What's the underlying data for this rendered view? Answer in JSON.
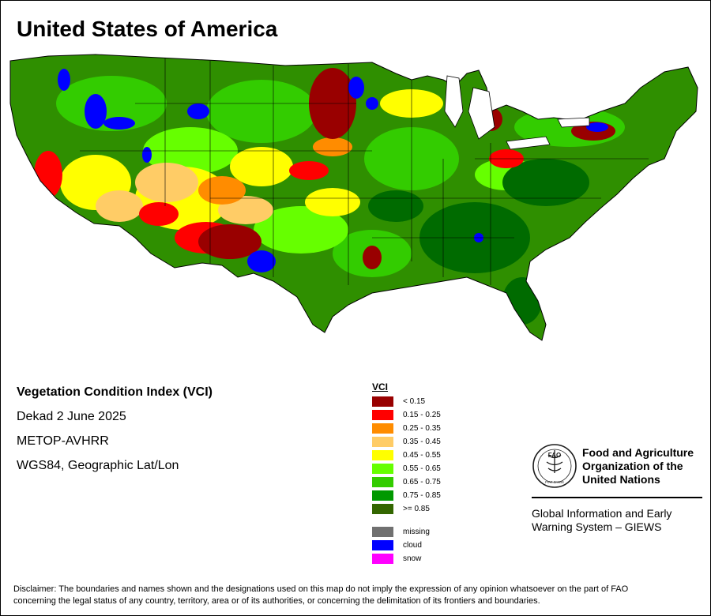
{
  "map": {
    "title": "United States of America",
    "layer_title": "Vegetation Condition Index (VCI)",
    "period": "Dekad 2 June 2025",
    "sensor": "METOP-AVHRR",
    "projection": "WGS84, Geographic Lat/Lon"
  },
  "legend": {
    "heading": "VCI",
    "classes": [
      {
        "label": "< 0.15",
        "color": "#990000"
      },
      {
        "label": "0.15 - 0.25",
        "color": "#ff0000"
      },
      {
        "label": "0.25 - 0.35",
        "color": "#ff8c00"
      },
      {
        "label": "0.35 - 0.45",
        "color": "#ffcc66"
      },
      {
        "label": "0.45 - 0.55",
        "color": "#ffff00"
      },
      {
        "label": "0.55 - 0.65",
        "color": "#66ff00"
      },
      {
        "label": "0.65 - 0.75",
        "color": "#33cc00"
      },
      {
        "label": "0.75 - 0.85",
        "color": "#009900"
      },
      {
        "label": ">= 0.85",
        "color": "#336600"
      }
    ],
    "special": [
      {
        "label": "missing",
        "color": "#707070"
      },
      {
        "label": "cloud",
        "color": "#0000ff"
      },
      {
        "label": "snow",
        "color": "#ff00ff"
      }
    ]
  },
  "organization": {
    "line1": "Food and Agriculture",
    "line2": "Organization of the",
    "line3": "United Nations",
    "logo_letters": "FAO",
    "logo_motto": "FIAT PANIS",
    "system_line1": "Global Information and Early",
    "system_line2": "Warning System – GIEWS"
  },
  "disclaimer": {
    "line1": "Disclaimer: The boundaries and names shown and the designations used on this map do not imply the expression of any opinion whatsoever on the part of FAO",
    "line2": "concerning the legal status of any country, territory, area or of its authorities, or concerning the delimitation of its frontiers and boundaries."
  }
}
